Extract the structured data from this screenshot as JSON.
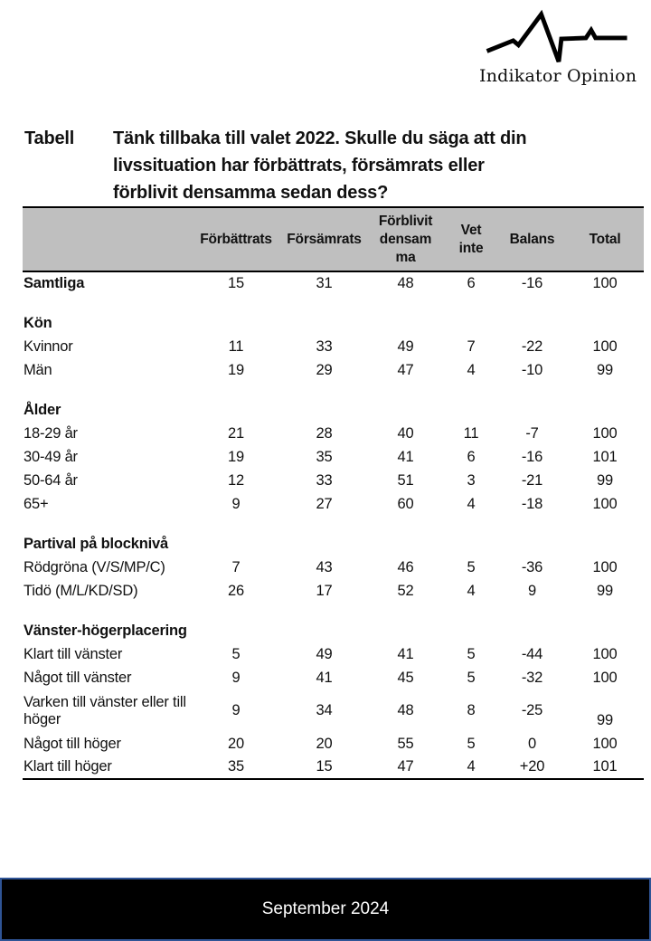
{
  "logo": {
    "brand": "Indikator Opinion"
  },
  "header": {
    "label": "Tabell",
    "question": "Tänk tillbaka till valet 2022. Skulle du säga att din\nlivssituation har förbättrats, försämrats eller\nförblivit densamma sedan dess?"
  },
  "table": {
    "columns": [
      "Förbättrats",
      "Försämrats",
      "Förblivit\ndensam\nma",
      "Vet\ninte",
      "Balans",
      "Total"
    ],
    "rows": [
      {
        "type": "data",
        "bold": true,
        "label": "Samtliga",
        "values": [
          "15",
          "31",
          "48",
          "6",
          "-16",
          "100"
        ]
      },
      {
        "type": "spacer"
      },
      {
        "type": "section",
        "label": "Kön"
      },
      {
        "type": "data",
        "label": "Kvinnor",
        "values": [
          "11",
          "33",
          "49",
          "7",
          "-22",
          "100"
        ]
      },
      {
        "type": "data",
        "label": "Män",
        "values": [
          "19",
          "29",
          "47",
          "4",
          "-10",
          "99"
        ]
      },
      {
        "type": "spacer"
      },
      {
        "type": "section",
        "label": "Ålder"
      },
      {
        "type": "data",
        "label": "18-29 år",
        "values": [
          "21",
          "28",
          "40",
          "11",
          "-7",
          "100"
        ]
      },
      {
        "type": "data",
        "label": "30-49 år",
        "values": [
          "19",
          "35",
          "41",
          "6",
          "-16",
          "101"
        ]
      },
      {
        "type": "data",
        "label": "50-64 år",
        "values": [
          "12",
          "33",
          "51",
          "3",
          "-21",
          "99"
        ]
      },
      {
        "type": "data",
        "label": "65+",
        "values": [
          "9",
          "27",
          "60",
          "4",
          "-18",
          "100"
        ]
      },
      {
        "type": "spacer"
      },
      {
        "type": "section",
        "label": "Partival på blocknivå"
      },
      {
        "type": "data",
        "label": "Rödgröna (V/S/MP/C)",
        "values": [
          "7",
          "43",
          "46",
          "5",
          "-36",
          "100"
        ]
      },
      {
        "type": "data",
        "label": "Tidö (M/L/KD/SD)",
        "values": [
          "26",
          "17",
          "52",
          "4",
          "9",
          "99"
        ]
      },
      {
        "type": "spacer"
      },
      {
        "type": "section",
        "label": "Vänster-högerplacering"
      },
      {
        "type": "data",
        "label": "Klart till vänster",
        "values": [
          "5",
          "49",
          "41",
          "5",
          "-44",
          "100"
        ]
      },
      {
        "type": "data",
        "label": "Något till vänster",
        "values": [
          "9",
          "41",
          "45",
          "5",
          "-32",
          "100"
        ]
      },
      {
        "type": "data",
        "label": "Varken till vänster eller till höger",
        "values": [
          "9",
          "34",
          "48",
          "8",
          "-25",
          "99"
        ],
        "total_low": true
      },
      {
        "type": "data",
        "label": "Något till höger",
        "values": [
          "20",
          "20",
          "55",
          "5",
          "0",
          "100"
        ]
      },
      {
        "type": "data",
        "label": "Klart till höger",
        "values": [
          "35",
          "15",
          "47",
          "4",
          "+20",
          "101"
        ]
      }
    ]
  },
  "footer": {
    "text": "September 2024"
  },
  "colors": {
    "header_bg": "#bfbfbf",
    "rule": "#000000",
    "footer_bg": "#000000",
    "footer_border": "#2f5496",
    "footer_text": "#ffffff",
    "text": "#111111"
  }
}
